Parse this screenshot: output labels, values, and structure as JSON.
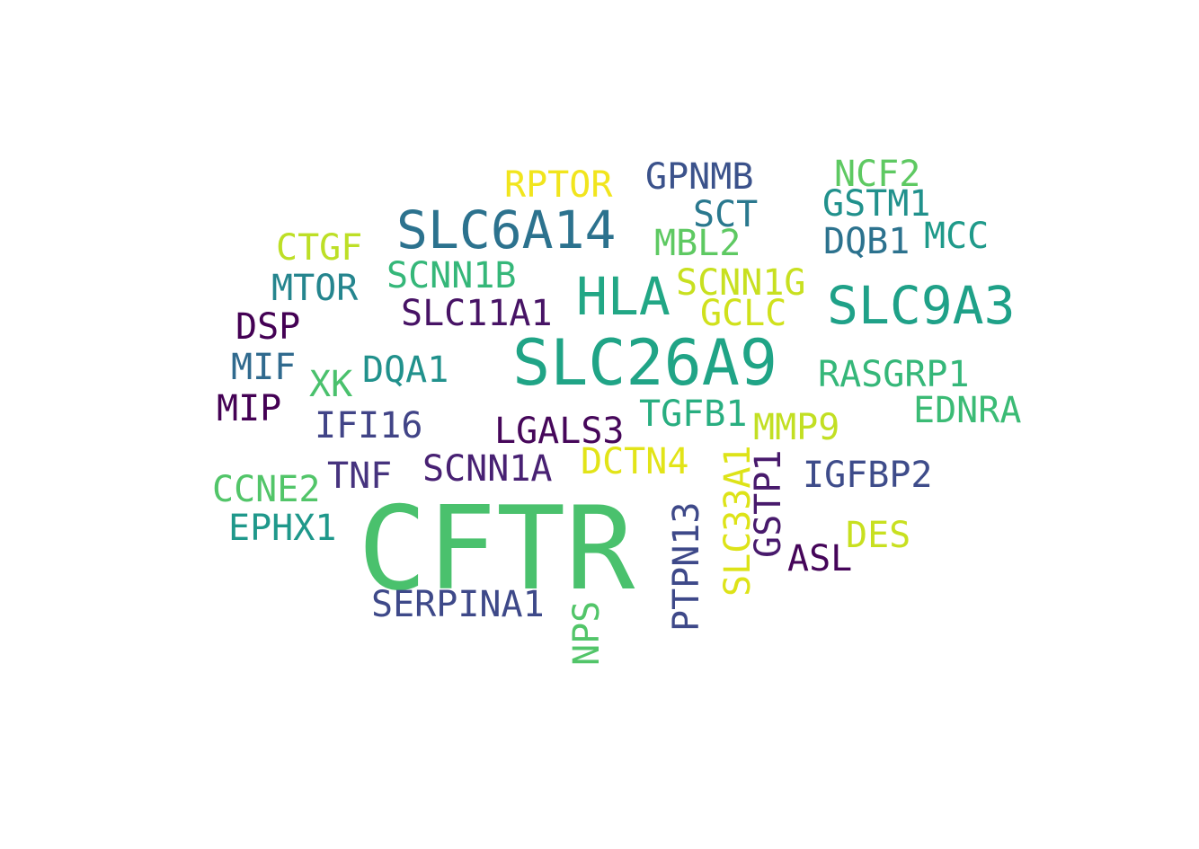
{
  "word_cloud": {
    "words": [
      {
        "text": "CFTR",
        "color": "#4ac16d",
        "rotated": false
      },
      {
        "text": "SLC26A9",
        "color": "#20a486",
        "rotated": false
      },
      {
        "text": "SLC6A14",
        "color": "#2c728e",
        "rotated": false
      },
      {
        "text": "SLC9A3",
        "color": "#1fa188",
        "rotated": false
      },
      {
        "text": "HLA",
        "color": "#22a785",
        "rotated": false
      },
      {
        "text": "RPTOR",
        "color": "#f1e51d",
        "rotated": false
      },
      {
        "text": "GPNMB",
        "color": "#3b528b",
        "rotated": false
      },
      {
        "text": "NCF2",
        "color": "#5ec962",
        "rotated": false
      },
      {
        "text": "GSTM1",
        "color": "#21918c",
        "rotated": false
      },
      {
        "text": "SCT",
        "color": "#2a788e",
        "rotated": false
      },
      {
        "text": "CTGF",
        "color": "#bddf26",
        "rotated": false
      },
      {
        "text": "MBL2",
        "color": "#5ec962",
        "rotated": false
      },
      {
        "text": "DQB1",
        "color": "#2c728e",
        "rotated": false
      },
      {
        "text": "MCC",
        "color": "#1f9a8a",
        "rotated": false
      },
      {
        "text": "MTOR",
        "color": "#25858e",
        "rotated": false
      },
      {
        "text": "SCNN1B",
        "color": "#35b779",
        "rotated": false
      },
      {
        "text": "SCNN1G",
        "color": "#c8e020",
        "rotated": false
      },
      {
        "text": "DSP",
        "color": "#440154",
        "rotated": false
      },
      {
        "text": "SLC11A1",
        "color": "#471365",
        "rotated": false
      },
      {
        "text": "GCLC",
        "color": "#d0e11c",
        "rotated": false
      },
      {
        "text": "MIF",
        "color": "#306a8e",
        "rotated": false
      },
      {
        "text": "XK",
        "color": "#4ac16d",
        "rotated": false
      },
      {
        "text": "DQA1",
        "color": "#21918c",
        "rotated": false
      },
      {
        "text": "RASGRP1",
        "color": "#35b779",
        "rotated": false
      },
      {
        "text": "MIP",
        "color": "#440154",
        "rotated": false
      },
      {
        "text": "TGFB1",
        "color": "#28ae80",
        "rotated": false
      },
      {
        "text": "EDNRA",
        "color": "#3bbb75",
        "rotated": false
      },
      {
        "text": "IFI16",
        "color": "#414487",
        "rotated": false
      },
      {
        "text": "LGALS3",
        "color": "#46075a",
        "rotated": false
      },
      {
        "text": "MMP9",
        "color": "#c2df23",
        "rotated": false
      },
      {
        "text": "SCNN1A",
        "color": "#482173",
        "rotated": false
      },
      {
        "text": "DCTN4",
        "color": "#e2e418",
        "rotated": false
      },
      {
        "text": "TNF",
        "color": "#46337e",
        "rotated": false
      },
      {
        "text": "IGFBP2",
        "color": "#3e4c8a",
        "rotated": false
      },
      {
        "text": "CCNE2",
        "color": "#52c569",
        "rotated": false
      },
      {
        "text": "EPHX1",
        "color": "#1f988b",
        "rotated": false
      },
      {
        "text": "DES",
        "color": "#c8e020",
        "rotated": false
      },
      {
        "text": "ASL",
        "color": "#450559",
        "rotated": false
      },
      {
        "text": "SERPINA1",
        "color": "#3e4989",
        "rotated": false
      },
      {
        "text": "NPS",
        "color": "#52c569",
        "rotated": true
      },
      {
        "text": "PTPN13",
        "color": "#3e4989",
        "rotated": true
      },
      {
        "text": "SLC33A1",
        "color": "#dde318",
        "rotated": true
      },
      {
        "text": "GSTP1",
        "color": "#481a6c",
        "rotated": true
      }
    ]
  }
}
